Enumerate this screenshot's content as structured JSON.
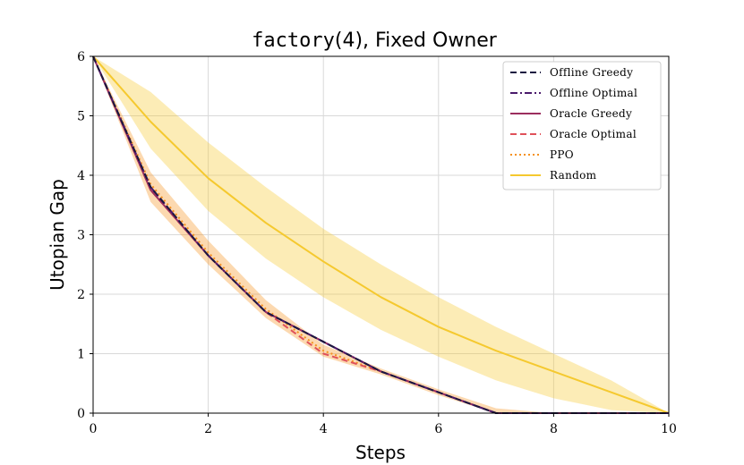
{
  "chart_data": {
    "type": "line",
    "title": "factory(4), Fixed Owner",
    "title_parts": {
      "mono": "factory",
      "rest": "(4), Fixed Owner"
    },
    "xlabel": "Steps",
    "ylabel": "Utopian Gap",
    "xlim": [
      0,
      10
    ],
    "ylim": [
      0,
      6
    ],
    "xticks": [
      0,
      2,
      4,
      6,
      8,
      10
    ],
    "yticks": [
      0,
      1,
      2,
      3,
      4,
      5,
      6
    ],
    "grid": true,
    "legend_position": "top-right",
    "x": [
      0,
      1,
      2,
      3,
      4,
      5,
      6,
      7,
      8,
      9,
      10
    ],
    "series": [
      {
        "name": "Offline Greedy",
        "color": "#1b1840",
        "dash": "dashed",
        "values": [
          6,
          3.8,
          2.65,
          1.7,
          1.2,
          0.7,
          0.35,
          0,
          0,
          0,
          0
        ]
      },
      {
        "name": "Offline Optimal",
        "color": "#4a1a6b",
        "dash": "dashdot",
        "values": [
          6,
          3.8,
          2.65,
          1.7,
          1.2,
          0.7,
          0.35,
          0,
          0,
          0,
          0
        ]
      },
      {
        "name": "Oracle Greedy",
        "color": "#9c2e5e",
        "dash": "solid",
        "values": [
          6,
          3.75,
          2.65,
          1.7,
          1.2,
          0.7,
          0.35,
          0,
          0,
          0,
          0
        ]
      },
      {
        "name": "Oracle Optimal",
        "color": "#e0515a",
        "dash": "dashed",
        "values": [
          6,
          3.75,
          2.65,
          1.7,
          1.0,
          0.7,
          0.35,
          0,
          0,
          0,
          0
        ]
      },
      {
        "name": "PPO",
        "color": "#f5911e",
        "dash": "dotted",
        "values": [
          6,
          3.85,
          2.7,
          1.75,
          1.05,
          0.7,
          0.35,
          0,
          0,
          0,
          0
        ],
        "band_lower": [
          6,
          3.55,
          2.5,
          1.6,
          0.95,
          0.65,
          0.3,
          0,
          0,
          0,
          0
        ],
        "band_upper": [
          6,
          4.05,
          2.9,
          1.9,
          1.15,
          0.75,
          0.4,
          0.08,
          0,
          0,
          0
        ]
      },
      {
        "name": "Random",
        "color": "#f5c92f",
        "dash": "solid",
        "values": [
          6,
          4.9,
          3.95,
          3.2,
          2.55,
          1.95,
          1.45,
          1.05,
          0.7,
          0.35,
          0
        ],
        "band_lower": [
          6,
          4.45,
          3.4,
          2.6,
          1.95,
          1.4,
          0.95,
          0.55,
          0.25,
          0.05,
          0
        ],
        "band_upper": [
          6,
          5.4,
          4.55,
          3.8,
          3.1,
          2.5,
          1.95,
          1.45,
          1.0,
          0.55,
          0
        ]
      }
    ]
  }
}
